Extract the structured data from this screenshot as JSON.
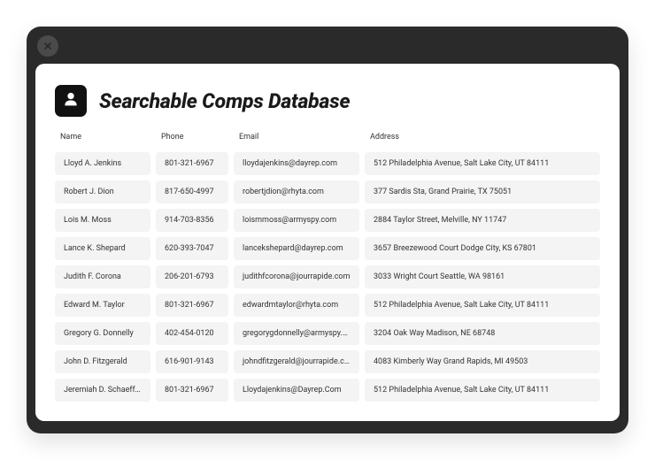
{
  "title": "Searchable Comps Database",
  "columns": [
    "Name",
    "Phone",
    "Email",
    "Address"
  ],
  "rows": [
    [
      "Lloyd A. Jenkins",
      "801-321-6967",
      "lloydajenkins@dayrep.com",
      "512 Philadelphia Avenue, Salt Lake City, UT 84111"
    ],
    [
      "Robert J. Dion",
      "817-650-4997",
      "robertjdion@rhyta.com",
      "377 Sardis Sta, Grand Prairie, TX 75051"
    ],
    [
      "Lois M. Moss",
      "914-703-8356",
      "loismmoss@armyspy.com",
      "2884 Taylor Street, Melville, NY 11747"
    ],
    [
      "Lance K. Shepard",
      "620-393-7047",
      "lancekshepard@dayrep.com",
      "3657 Breezewood Court Dodge City, KS 67801"
    ],
    [
      "Judith F. Corona",
      "206-201-6793",
      "judithfcorona@jourrapide.com",
      "3033 Wright Court Seattle, WA 98161"
    ],
    [
      "Edward M. Taylor",
      "801-321-6967",
      "edwardmtaylor@rhyta.com",
      "512 Philadelphia Avenue, Salt Lake City, UT 84111"
    ],
    [
      "Gregory G. Donnelly",
      "402-454-0120",
      "gregorygdonnelly@armyspy.com",
      "3204 Oak Way Madison, NE 68748"
    ],
    [
      "John D. Fitzgerald",
      "616-901-9143",
      "johndfitzgerald@jourrapide.com",
      "4083 Kimberly Way Grand Rapids, MI 49503"
    ],
    [
      "Jeremiah D. Schaeffer",
      "801-321-6967",
      "Lloydajenkins@Dayrep.Com",
      "512 Philadelphia Avenue, Salt Lake City, UT 84111"
    ]
  ],
  "colors": {
    "window_bg": "#2a2a2a",
    "card_bg": "#ffffff",
    "cell_bg": "#f4f4f4",
    "close_bg": "#4a4a4a",
    "icon_bg": "#111111",
    "text": "#333333"
  }
}
